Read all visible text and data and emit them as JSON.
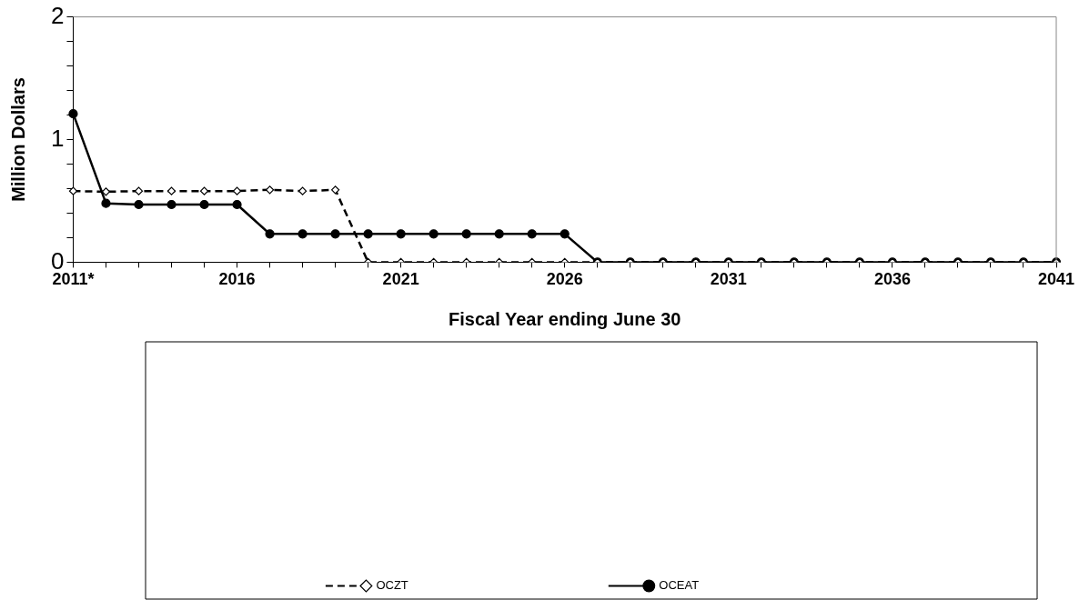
{
  "chart_data": {
    "type": "line",
    "xlabel": "Fiscal Year ending June 30",
    "ylabel": "Million Dollars",
    "categories": [
      "2011*",
      null,
      null,
      null,
      null,
      "2016",
      null,
      null,
      null,
      null,
      "2021",
      null,
      null,
      null,
      null,
      "2026",
      null,
      null,
      null,
      null,
      "2031",
      null,
      null,
      null,
      null,
      "2036",
      null,
      null,
      null,
      null,
      "2041"
    ],
    "ylim": [
      0,
      2
    ],
    "yticks": [
      0,
      {
        "value": 0.2,
        "label": null
      },
      {
        "value": 0.4,
        "label": null
      },
      {
        "value": 0.6,
        "label": null
      },
      {
        "value": 0.8,
        "label": null
      },
      1,
      {
        "value": 1.2,
        "label": null
      },
      {
        "value": 1.4,
        "label": null
      },
      {
        "value": 1.6,
        "label": null
      },
      {
        "value": 1.8,
        "label": null
      },
      2
    ],
    "grid": false,
    "legend": "bottom",
    "series": [
      {
        "name": "OCZT",
        "color": "#000000",
        "marker": "diamond",
        "line_style": "dashed",
        "values": [
          0.58,
          0.575,
          0.58,
          0.58,
          0.58,
          0.58,
          0.59,
          0.58,
          0.59,
          0,
          0,
          0,
          0,
          0,
          0,
          0,
          0,
          0,
          0,
          0,
          0,
          0,
          0,
          0,
          0,
          0,
          0,
          0,
          0,
          0,
          0
        ]
      },
      {
        "name": "OCEAT",
        "color": "#000000",
        "marker": "circle",
        "line_style": "solid",
        "values": [
          1.21,
          0.48,
          0.47,
          0.47,
          0.47,
          0.47,
          0.23,
          0.23,
          0.23,
          0.23,
          0.23,
          0.23,
          0.23,
          0.23,
          0.23,
          0.23,
          0,
          0,
          0,
          0,
          0,
          0,
          0,
          0,
          0,
          0,
          0,
          0,
          0,
          0,
          0
        ]
      }
    ]
  }
}
